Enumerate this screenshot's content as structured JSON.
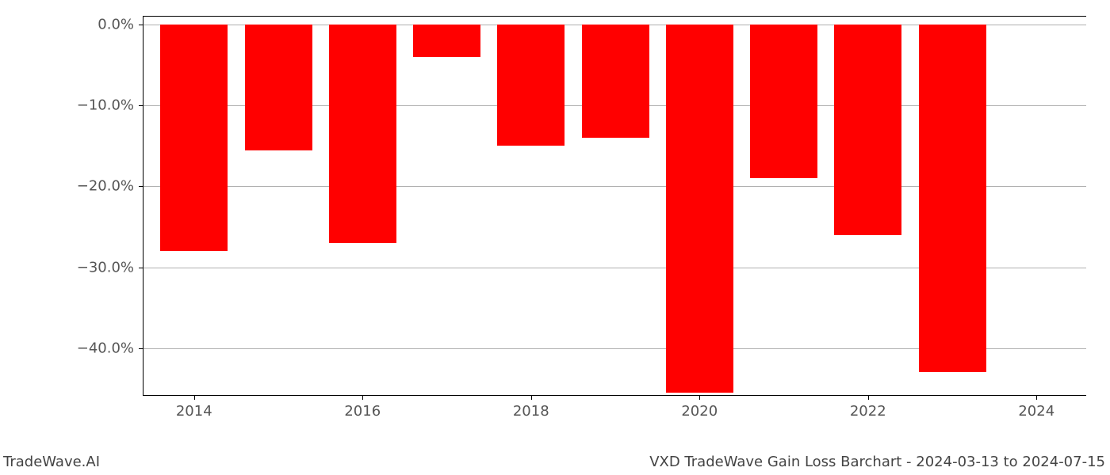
{
  "chart": {
    "type": "bar",
    "years": [
      2014,
      2015,
      2016,
      2017,
      2018,
      2019,
      2020,
      2021,
      2022,
      2023,
      2024
    ],
    "values": [
      -28.0,
      -15.5,
      -27.0,
      -4.0,
      -15.0,
      -14.0,
      -45.5,
      -19.0,
      -26.0,
      -43.0,
      0.0
    ],
    "has_bar_2024": false,
    "bar_color": "#ff0000",
    "bar_width": 0.8,
    "background_color": "#ffffff",
    "grid_color": "#b0b0b0",
    "axis_color": "#000000",
    "tick_color": "#555555",
    "ylim": [
      -46,
      1
    ],
    "xlim": [
      2013.4,
      2024.6
    ],
    "y_ticks": [
      0.0,
      -10.0,
      -20.0,
      -30.0,
      -40.0
    ],
    "y_tick_labels": [
      "0.0%",
      "−10.0%",
      "−20.0%",
      "−30.0%",
      "−40.0%"
    ],
    "x_ticks": [
      2014,
      2016,
      2018,
      2020,
      2022,
      2024
    ],
    "x_tick_labels": [
      "2014",
      "2016",
      "2018",
      "2020",
      "2022",
      "2024"
    ],
    "label_fontsize": 18
  },
  "footer": {
    "left": "TradeWave.AI",
    "right": "VXD TradeWave Gain Loss Barchart - 2024-03-13 to 2024-07-15"
  }
}
